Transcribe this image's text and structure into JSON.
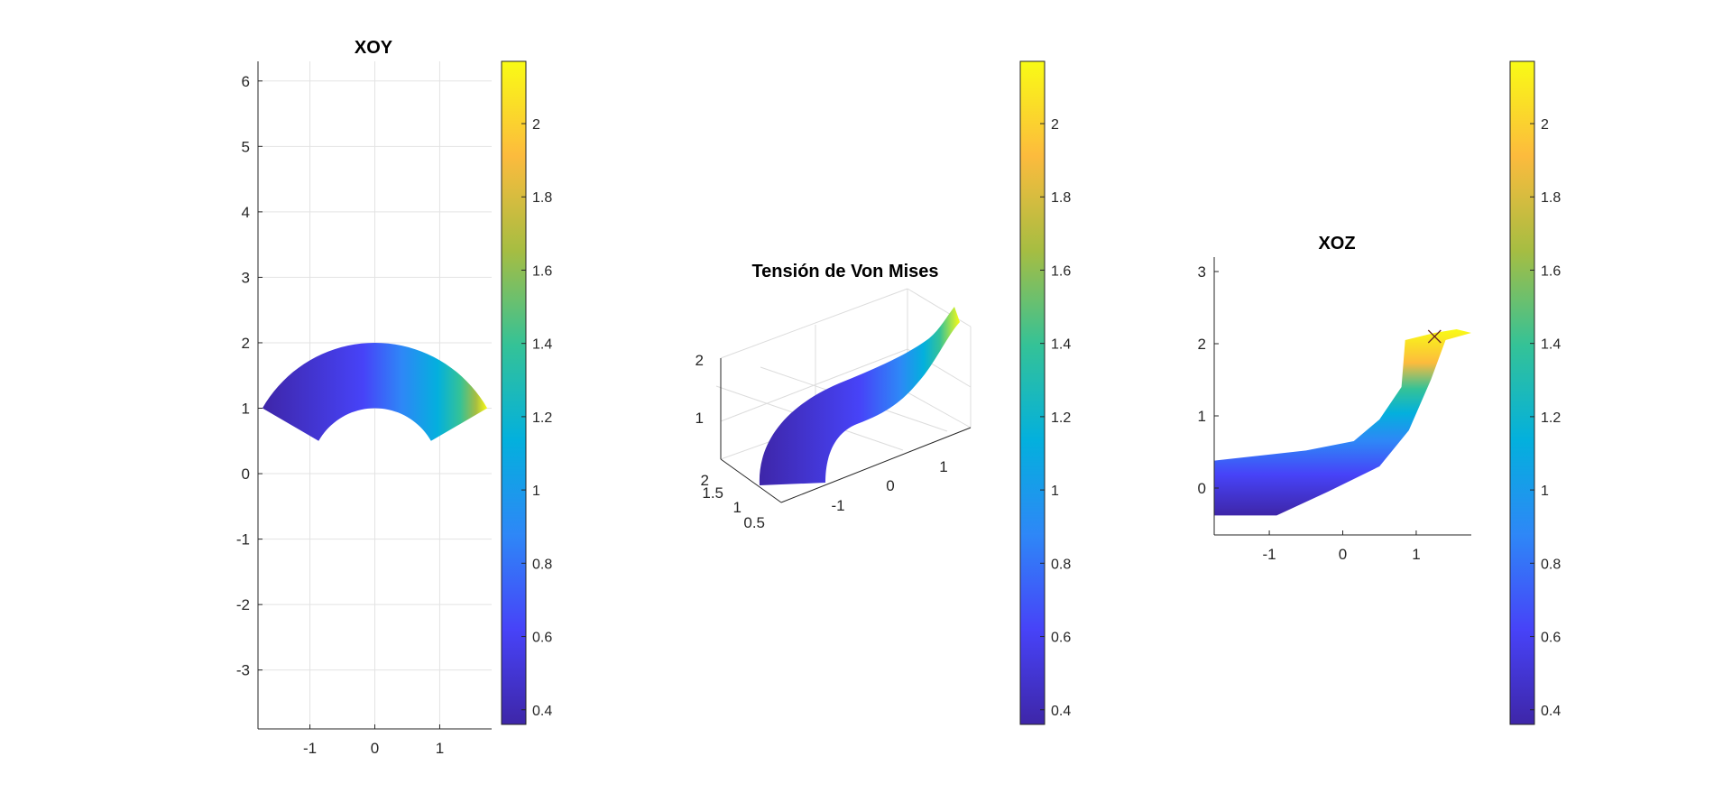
{
  "colormap": [
    "#3e26a8",
    "#4743f8",
    "#2e87f7",
    "#03b0dd",
    "#34c297",
    "#a6bd42",
    "#fcbb3d",
    "#f9fb15"
  ],
  "chart_data": [
    {
      "type": "surface",
      "title": "XOY",
      "view": "top (x-y)",
      "xticks": [
        "-1",
        "0",
        "1"
      ],
      "yticks": [
        "6",
        "5",
        "4",
        "3",
        "2",
        "1",
        "0",
        "-1",
        "-2",
        "-3"
      ],
      "xlim": [
        -1.8,
        1.8
      ],
      "ylim": [
        -3.9,
        6.3
      ],
      "grid": true,
      "shape": "half-annulus, inner radius 1, outer radius 2, angle 150° to 30°",
      "colorbar": {
        "range": [
          0.36,
          2.17
        ],
        "ticks": [
          "2",
          "1.8",
          "1.6",
          "1.4",
          "1.2",
          "1",
          "0.8",
          "0.6",
          "0.4"
        ]
      }
    },
    {
      "type": "surface",
      "title": "Tensión de Von Mises",
      "view": "3-D",
      "xticks": [
        "-1",
        "0",
        "1"
      ],
      "yticks": [
        "2",
        "1.5",
        "1",
        "0.5"
      ],
      "zticks": [
        "2",
        "1"
      ],
      "grid": true,
      "colorbar": {
        "range": [
          0.36,
          2.17
        ],
        "ticks": [
          "2",
          "1.8",
          "1.6",
          "1.4",
          "1.2",
          "1",
          "0.8",
          "0.6",
          "0.4"
        ]
      }
    },
    {
      "type": "surface",
      "title": "XOZ",
      "view": "side (x-z)",
      "xticks": [
        "-1",
        "0",
        "1"
      ],
      "yticks": [
        "3",
        "2",
        "1",
        "0"
      ],
      "xlim": [
        -1.75,
        1.75
      ],
      "ylim": [
        -0.65,
        3.2
      ],
      "grid": false,
      "marker": {
        "symbol": "x",
        "x": 1.25,
        "z": 2.1
      },
      "colorbar": {
        "range": [
          0.36,
          2.17
        ],
        "ticks": [
          "2",
          "1.8",
          "1.6",
          "1.4",
          "1.2",
          "1",
          "0.8",
          "0.6",
          "0.4"
        ]
      }
    }
  ]
}
